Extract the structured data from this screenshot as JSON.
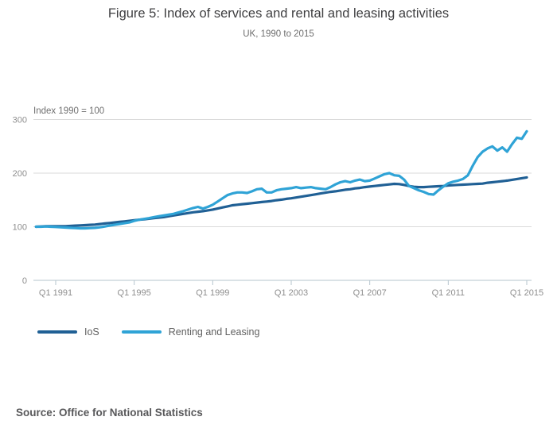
{
  "title": "Figure 5: Index of services and rental and leasing activities",
  "subtitle": "UK, 1990 to 2015",
  "axis_caption": "Index 1990 = 100",
  "source": "Source: Office for National Statistics",
  "colors": {
    "ios_line": "#206095",
    "renting_line": "#2FA3D6",
    "gridline": "#dadada",
    "axis": "#b6c5ce",
    "tick_label": "#8e8e8e"
  },
  "legend": [
    {
      "label": "IoS",
      "color": "#206095"
    },
    {
      "label": "Renting and Leasing",
      "color": "#2FA3D6"
    }
  ],
  "chart_data": {
    "type": "line",
    "title": "Figure 5: Index of services and rental and leasing activities",
    "subtitle": "UK, 1990 to 2015",
    "ylabel": "Index 1990 = 100",
    "x_unit": "quarter",
    "x_start": "Q1 1990",
    "x_end": "Q1 2015",
    "x_tick_labels": [
      "Q1 1991",
      "Q1 1995",
      "Q1 1999",
      "Q1 2003",
      "Q1 2007",
      "Q1 2011",
      "Q1 2015"
    ],
    "x_tick_indices": [
      4,
      20,
      36,
      52,
      68,
      84,
      100
    ],
    "y_ticks": [
      0,
      100,
      200,
      300
    ],
    "ylim": [
      0,
      300
    ],
    "grid": "horizontal",
    "legend_position": "bottom-left",
    "series": [
      {
        "name": "IoS",
        "color": "#206095",
        "values": [
          100,
          100.5,
          101,
          101,
          101,
          101,
          101,
          101.5,
          102,
          102.5,
          103,
          103.5,
          104,
          105,
          106,
          107,
          108,
          109,
          110,
          111,
          112,
          113,
          114,
          115,
          116,
          117,
          118,
          119.5,
          121,
          122.5,
          124,
          125.5,
          127,
          128,
          129,
          130.5,
          132,
          134,
          136,
          138,
          140,
          141,
          142,
          143,
          144,
          145,
          146,
          147,
          148,
          149.5,
          150.5,
          152,
          153,
          154.5,
          156,
          157.5,
          159,
          160.5,
          162,
          163.5,
          165,
          166,
          167.5,
          169,
          170,
          171.5,
          172.5,
          174,
          175,
          176,
          177,
          178,
          179,
          180,
          179.5,
          178,
          176,
          174.5,
          174,
          174,
          174.5,
          175,
          175.5,
          176,
          177,
          177.5,
          178,
          178.5,
          179,
          179.5,
          180,
          180.5,
          182,
          183,
          184,
          185,
          186,
          187.5,
          189,
          190.5,
          192
        ]
      },
      {
        "name": "Renting and Leasing",
        "color": "#2FA3D6",
        "values": [
          100,
          100,
          100.5,
          100,
          99.5,
          99,
          98.5,
          98,
          97.5,
          97,
          97,
          97.5,
          98,
          99,
          100.5,
          102,
          103.5,
          105,
          106.5,
          108,
          111,
          113,
          114.5,
          116,
          118,
          119.5,
          121,
          122.5,
          124,
          126.5,
          129,
          132,
          135,
          137,
          134,
          137,
          141,
          147,
          153,
          159,
          162,
          164,
          164,
          163,
          166,
          170,
          171,
          164,
          164,
          168,
          170,
          171,
          172,
          174,
          172,
          173,
          174,
          172,
          171,
          170,
          174,
          179,
          183,
          185,
          183,
          186,
          188,
          185,
          186,
          190,
          194,
          198,
          200,
          196,
          195,
          188,
          176,
          172,
          168,
          165,
          161,
          160,
          168,
          175,
          181,
          184,
          186,
          189,
          196,
          214,
          230,
          240,
          246,
          250,
          242,
          248,
          240,
          254,
          266,
          264,
          278
        ]
      }
    ]
  }
}
